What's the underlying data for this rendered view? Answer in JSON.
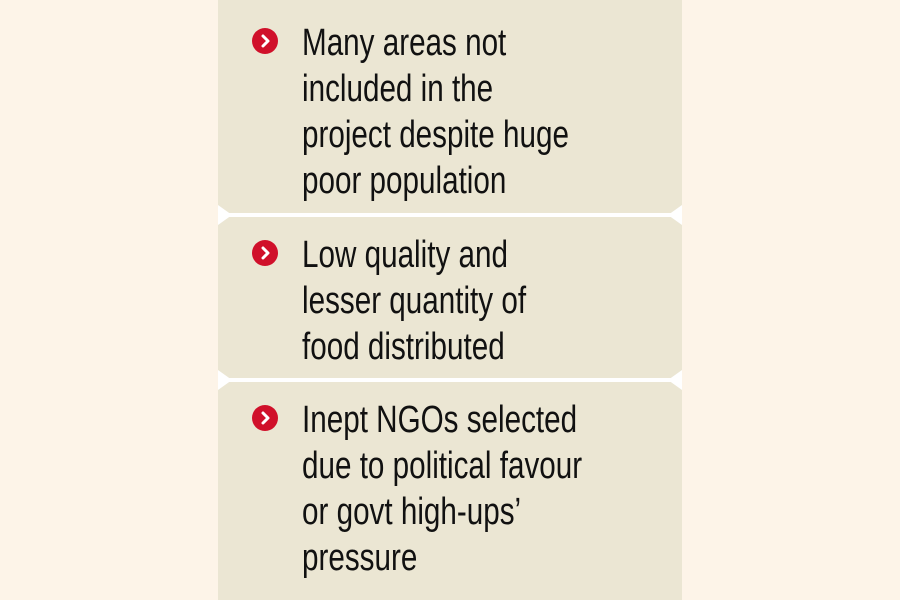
{
  "colors": {
    "background": "#fdf4e8",
    "panel": "#ebe6d3",
    "bullet": "#d0102a",
    "separator": "#ffffff"
  },
  "items": [
    {
      "icon": "chevron-right-circle-icon",
      "lines": [
        "Many areas not",
        "included in the",
        "project despite huge",
        "poor population"
      ]
    },
    {
      "icon": "chevron-right-circle-icon",
      "lines": [
        "Low quality and",
        "lesser quantity of",
        "food distributed"
      ]
    },
    {
      "icon": "chevron-right-circle-icon",
      "lines": [
        "Inept NGOs selected",
        "due to political favour",
        "or govt high-ups’",
        "pressure"
      ]
    }
  ]
}
